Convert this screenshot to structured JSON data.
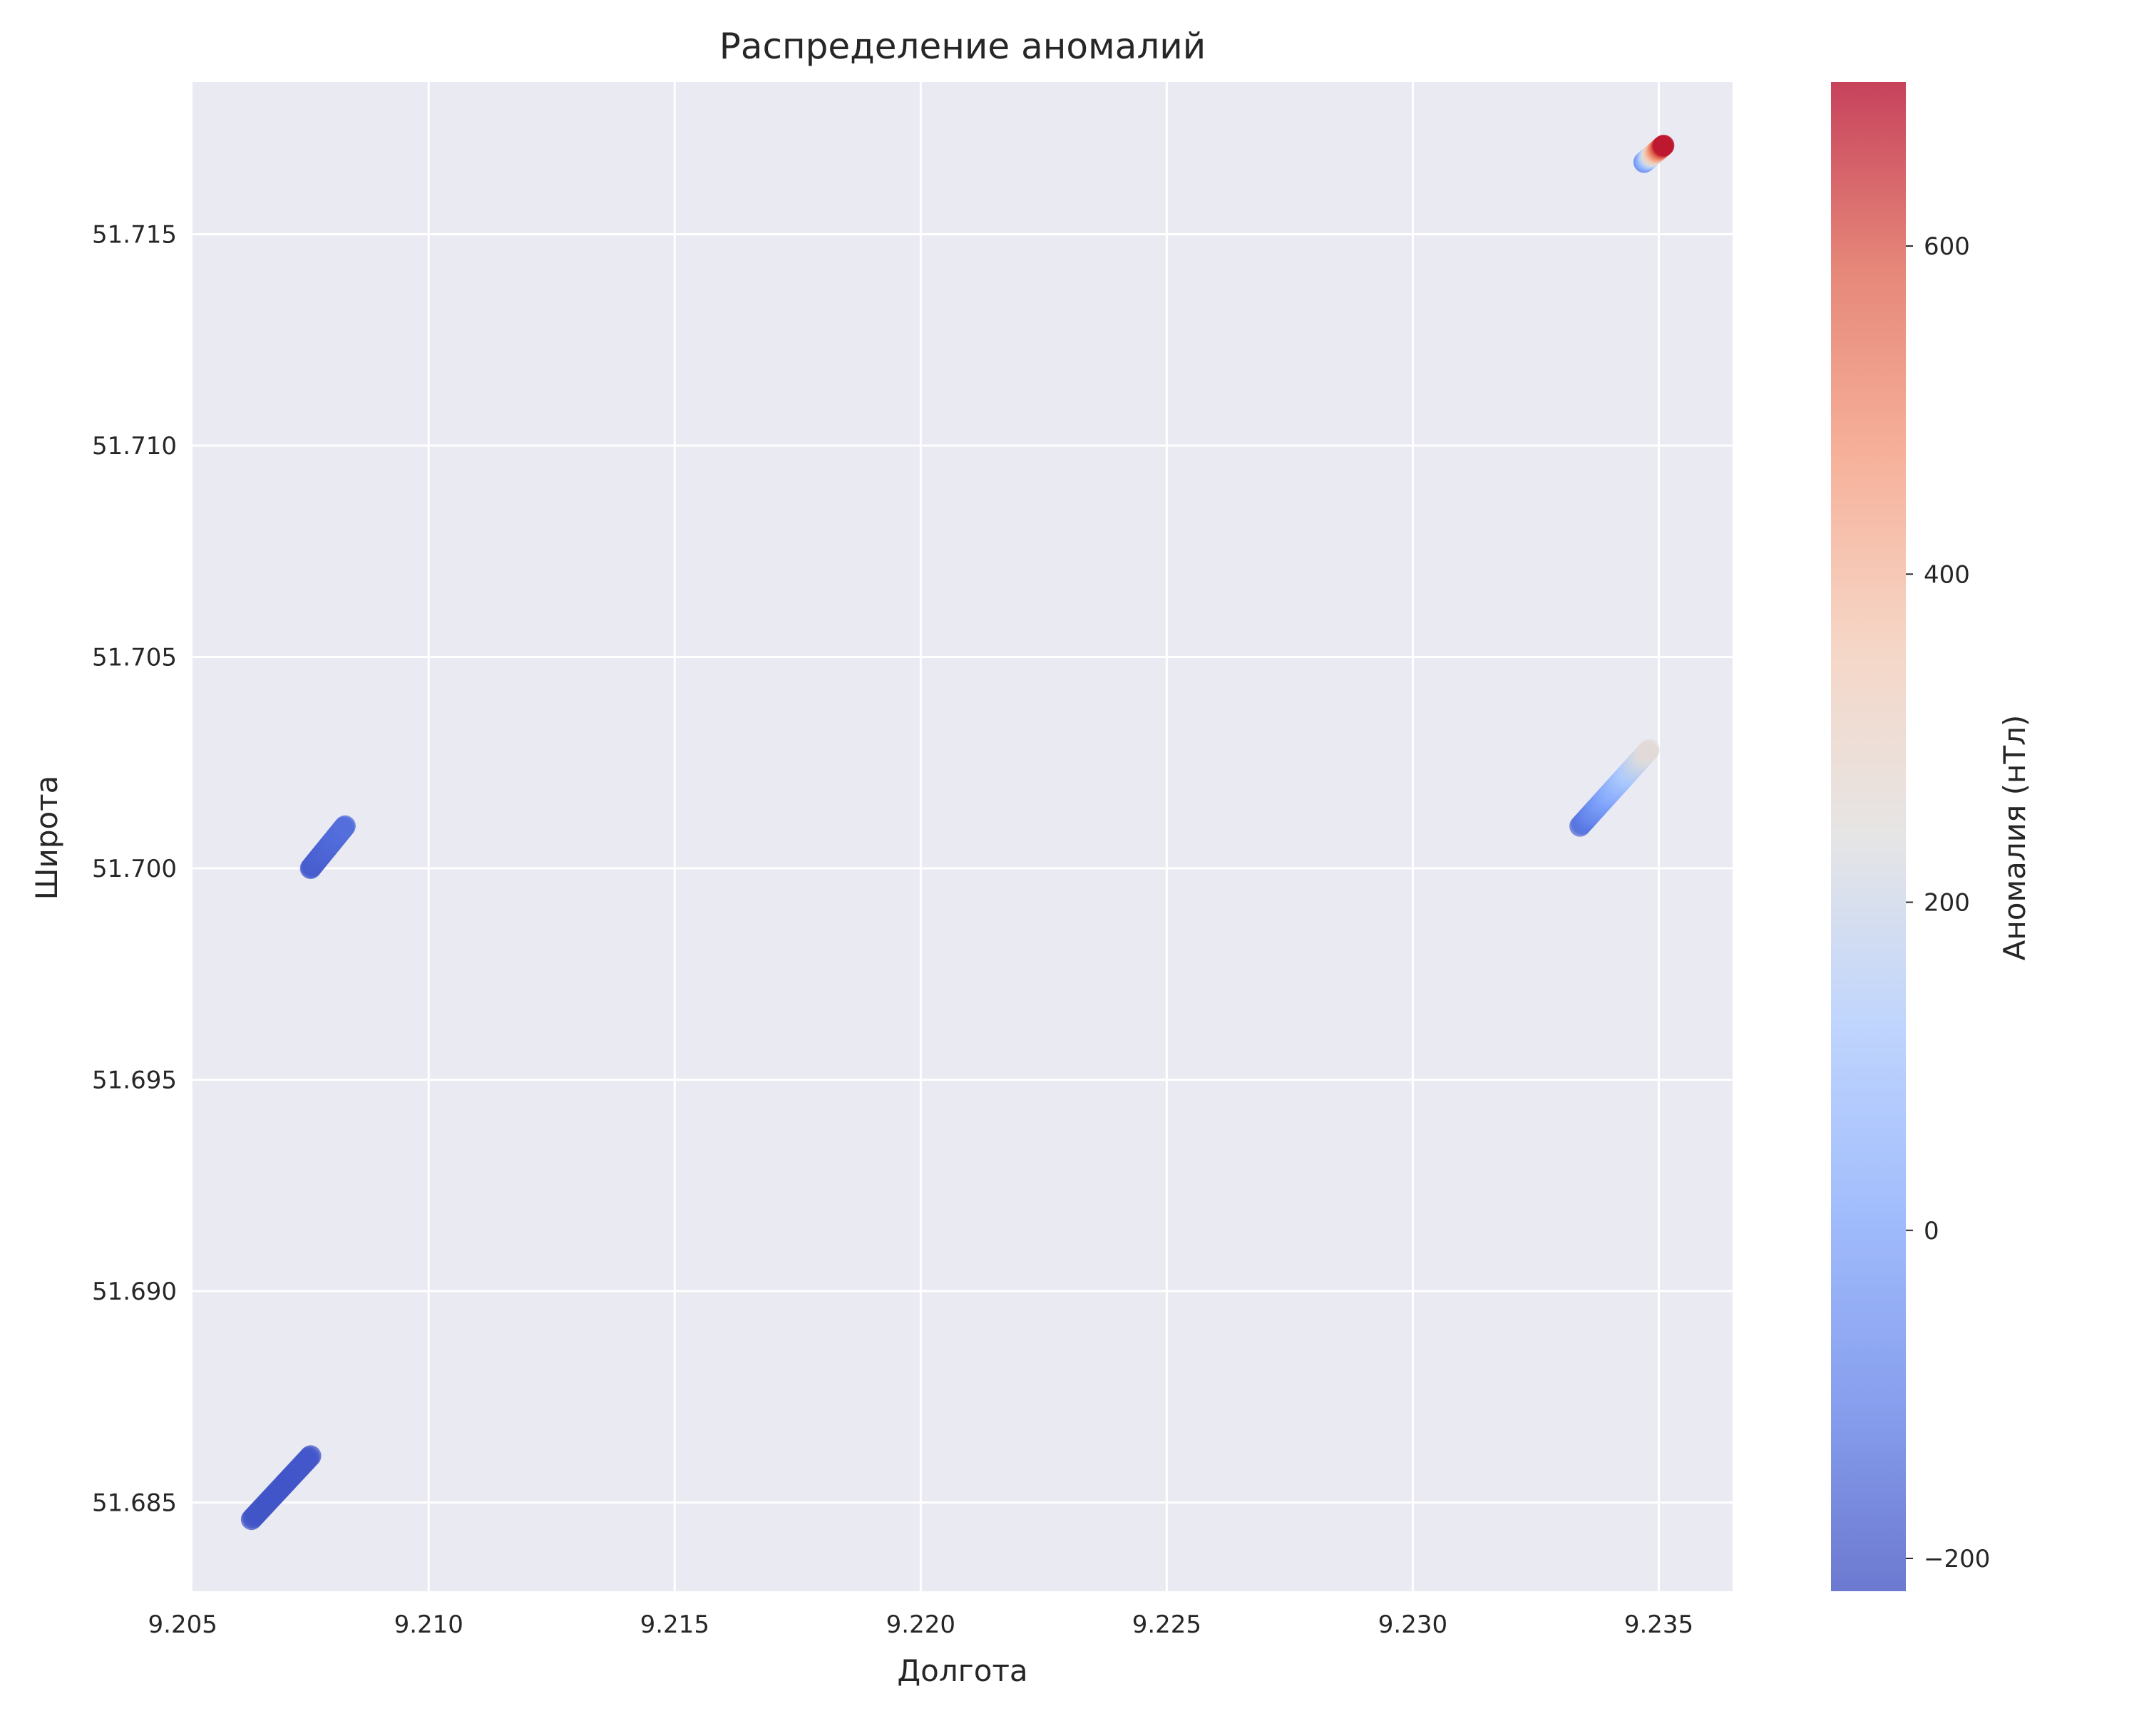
{
  "chart_data": {
    "type": "scatter",
    "title": "Распределение аномалий",
    "xlabel": "Долгота",
    "ylabel": "Широта",
    "xlim": [
      9.2052,
      9.2365
    ],
    "ylim": [
      51.6829,
      51.7186
    ],
    "xticks": [
      "9.205",
      "9.210",
      "9.215",
      "9.220",
      "9.225",
      "9.230",
      "9.235"
    ],
    "xtick_values": [
      9.205,
      9.21,
      9.215,
      9.22,
      9.225,
      9.23,
      9.235
    ],
    "yticks": [
      "51.685",
      "51.690",
      "51.695",
      "51.700",
      "51.705",
      "51.710",
      "51.715"
    ],
    "ytick_values": [
      51.685,
      51.69,
      51.695,
      51.7,
      51.705,
      51.71,
      51.715
    ],
    "grid": true,
    "colormap": "coolwarm",
    "colorbar": {
      "label": "Аномалия (нТл)",
      "range": [
        -220,
        700
      ],
      "ticks": [
        "−200",
        "0",
        "200",
        "400",
        "600"
      ],
      "tick_values": [
        -200,
        0,
        200,
        400,
        600
      ]
    },
    "segments": [
      {
        "x": [
          9.2064,
          9.2076
        ],
        "y": [
          51.6846,
          51.6861
        ],
        "anomaly": [
          -200,
          -195
        ]
      },
      {
        "x": [
          9.2076,
          9.2083
        ],
        "y": [
          51.7,
          51.701
        ],
        "anomaly": [
          -185,
          -140
        ]
      },
      {
        "x": [
          9.2334,
          9.2348
        ],
        "y": [
          51.701,
          51.7028
        ],
        "anomaly": [
          -150,
          260
        ]
      },
      {
        "x": [
          9.2347,
          9.2351
        ],
        "y": [
          51.7167,
          51.7171
        ],
        "anomaly": [
          -60,
          680
        ]
      }
    ]
  },
  "colors": {
    "plot_bg": "#eaeaf2",
    "grid": "#ffffff",
    "text": "#262626"
  }
}
